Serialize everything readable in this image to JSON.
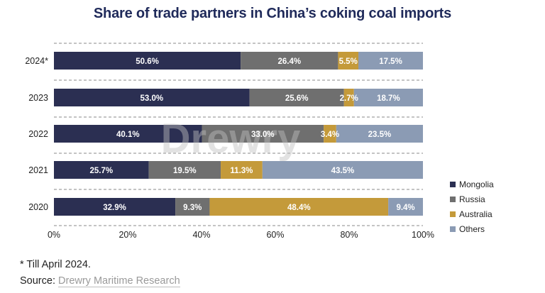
{
  "title": "Share of trade partners in China’s coking coal imports",
  "footnote": "* Till April 2024.",
  "source_label": "Source:",
  "source_name": "Drewry Maritime Research",
  "watermark": "Drewry",
  "colors": {
    "Mongolia": "#2b2f52",
    "Russia": "#6f6f6f",
    "Australia": "#c49a3a",
    "Others": "#8b9bb4",
    "title": "#1f2a5a"
  },
  "chart_data": {
    "type": "bar",
    "orientation": "horizontal",
    "stacked": true,
    "categories": [
      "2024*",
      "2023",
      "2022",
      "2021",
      "2020"
    ],
    "series": [
      {
        "name": "Mongolia",
        "values": [
          50.6,
          53.0,
          40.1,
          25.7,
          32.9
        ]
      },
      {
        "name": "Russia",
        "values": [
          26.4,
          25.6,
          33.0,
          19.5,
          9.3
        ]
      },
      {
        "name": "Australia",
        "values": [
          5.5,
          2.7,
          3.4,
          11.3,
          48.4
        ]
      },
      {
        "name": "Others",
        "values": [
          17.5,
          18.7,
          23.5,
          43.5,
          9.4
        ]
      }
    ],
    "data_labels": [
      [
        "50.6%",
        "26.4%",
        "5.5%",
        "17.5%"
      ],
      [
        "53.0%",
        "25.6%",
        "2.7%",
        "18.7%"
      ],
      [
        "40.1%",
        "33.0%",
        "3.4%",
        "23.5%"
      ],
      [
        "25.7%",
        "19.5%",
        "11.3%",
        "43.5%"
      ],
      [
        "32.9%",
        "9.3%",
        "48.4%",
        "9.4%"
      ]
    ],
    "x_ticks": [
      "0%",
      "20%",
      "40%",
      "60%",
      "80%",
      "100%"
    ],
    "xlim": [
      0,
      100
    ],
    "legend": [
      "Mongolia",
      "Russia",
      "Australia",
      "Others"
    ],
    "legend_position": "right",
    "grid": "dashed separators between rows"
  }
}
